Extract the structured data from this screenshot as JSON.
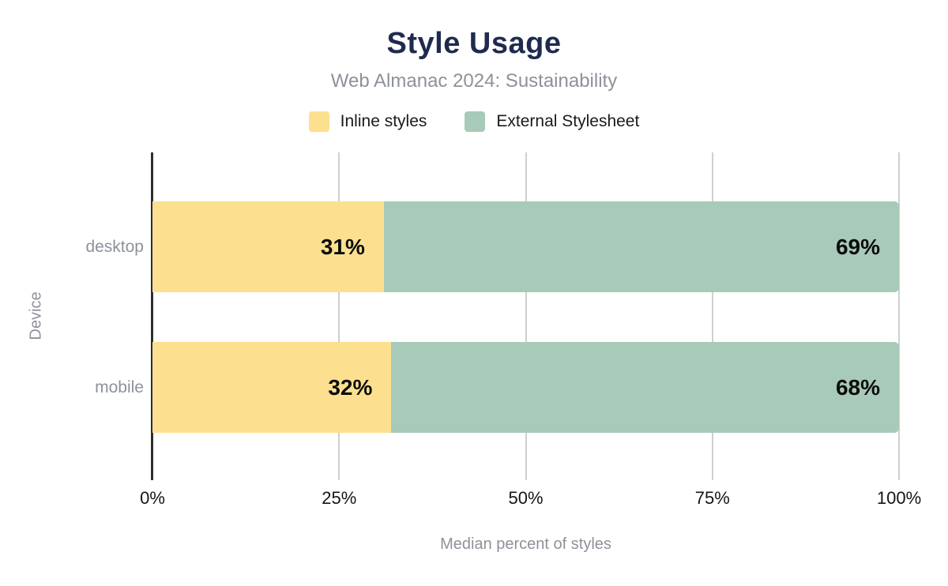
{
  "chart_data": {
    "type": "bar",
    "stacked": true,
    "orientation": "horizontal",
    "title": "Style Usage",
    "subtitle": "Web Almanac 2024: Sustainability",
    "xlabel": "Median percent of styles",
    "ylabel": "Device",
    "categories": [
      "desktop",
      "mobile"
    ],
    "series": [
      {
        "name": "Inline styles",
        "color": "#fce08f",
        "values": [
          31,
          32
        ]
      },
      {
        "name": "External Stylesheet",
        "color": "#a8cab9",
        "values": [
          69,
          68
        ]
      }
    ],
    "x_ticks": [
      "0%",
      "25%",
      "50%",
      "75%",
      "100%"
    ],
    "xlim": [
      0,
      100
    ],
    "value_suffix": "%",
    "legend_position": "top",
    "grid": true
  },
  "colors": {
    "title_text": "#1e2b4e",
    "muted_text": "#8d9199",
    "tick_text": "#151515",
    "value_text": "#0c0c0c",
    "axis_line": "#2e2e2e",
    "gridline": "#cfcfcf",
    "background": "#ffffff"
  }
}
